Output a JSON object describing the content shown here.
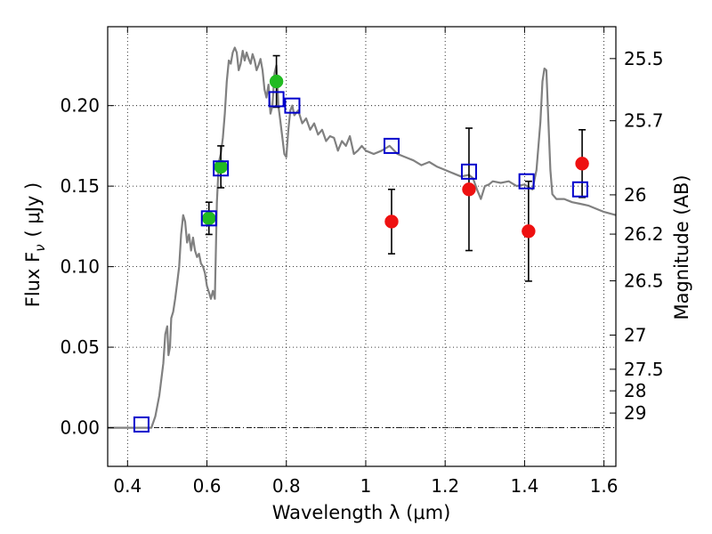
{
  "chart_data": {
    "type": "scatter",
    "xlabel": "Wavelength  λ (μm)",
    "ylabel": "Flux  F",
    "ylabel_sub": "ν",
    "ylabel_unit": "( μJy )",
    "y2label": "Magnitude (AB)",
    "xlim": [
      0.35,
      1.63
    ],
    "ylim": [
      -0.024,
      0.249
    ],
    "grid": true,
    "x_ticks": [
      0.4,
      0.6,
      0.8,
      1.0,
      1.2,
      1.4,
      1.6
    ],
    "x_tick_labels": [
      "0.4",
      "0.6",
      "0.8",
      "1",
      "1.2",
      "1.4",
      "1.6"
    ],
    "y_ticks": [
      0.0,
      0.05,
      0.1,
      0.15,
      0.2
    ],
    "y_tick_labels": [
      "0.00",
      "0.05",
      "0.10",
      "0.15",
      "0.20"
    ],
    "y2_ticks": [
      {
        "label": "25.5",
        "flux": 0.2292
      },
      {
        "label": "25.7",
        "flux": 0.1906
      },
      {
        "label": "26",
        "flux": 0.1446
      },
      {
        "label": "26.2",
        "flux": 0.1202
      },
      {
        "label": "26.5",
        "flux": 0.0912
      },
      {
        "label": "27",
        "flux": 0.0575
      },
      {
        "label": "27.5",
        "flux": 0.0363
      },
      {
        "label": "28",
        "flux": 0.0229
      },
      {
        "label": "29",
        "flux": 0.0091
      }
    ],
    "zero_line": 0.0,
    "model_spectrum": {
      "color": "#808080",
      "points": [
        [
          0.35,
          0.0
        ],
        [
          0.44,
          0.0
        ],
        [
          0.46,
          0.0
        ],
        [
          0.47,
          0.007
        ],
        [
          0.48,
          0.02
        ],
        [
          0.49,
          0.04
        ],
        [
          0.495,
          0.058
        ],
        [
          0.5,
          0.063
        ],
        [
          0.503,
          0.045
        ],
        [
          0.507,
          0.05
        ],
        [
          0.51,
          0.068
        ],
        [
          0.515,
          0.072
        ],
        [
          0.52,
          0.08
        ],
        [
          0.525,
          0.09
        ],
        [
          0.53,
          0.1
        ],
        [
          0.535,
          0.12
        ],
        [
          0.54,
          0.132
        ],
        [
          0.545,
          0.128
        ],
        [
          0.55,
          0.115
        ],
        [
          0.555,
          0.12
        ],
        [
          0.56,
          0.11
        ],
        [
          0.565,
          0.118
        ],
        [
          0.57,
          0.11
        ],
        [
          0.575,
          0.106
        ],
        [
          0.58,
          0.108
        ],
        [
          0.585,
          0.102
        ],
        [
          0.59,
          0.1
        ],
        [
          0.595,
          0.096
        ],
        [
          0.6,
          0.088
        ],
        [
          0.605,
          0.084
        ],
        [
          0.61,
          0.08
        ],
        [
          0.615,
          0.085
        ],
        [
          0.62,
          0.08
        ],
        [
          0.625,
          0.14
        ],
        [
          0.63,
          0.165
        ],
        [
          0.635,
          0.17
        ],
        [
          0.64,
          0.18
        ],
        [
          0.645,
          0.195
        ],
        [
          0.65,
          0.215
        ],
        [
          0.655,
          0.228
        ],
        [
          0.66,
          0.226
        ],
        [
          0.665,
          0.233
        ],
        [
          0.67,
          0.236
        ],
        [
          0.675,
          0.233
        ],
        [
          0.68,
          0.222
        ],
        [
          0.685,
          0.226
        ],
        [
          0.69,
          0.234
        ],
        [
          0.695,
          0.228
        ],
        [
          0.7,
          0.233
        ],
        [
          0.705,
          0.229
        ],
        [
          0.71,
          0.226
        ],
        [
          0.715,
          0.232
        ],
        [
          0.72,
          0.228
        ],
        [
          0.725,
          0.222
        ],
        [
          0.73,
          0.225
        ],
        [
          0.735,
          0.229
        ],
        [
          0.74,
          0.222
        ],
        [
          0.745,
          0.21
        ],
        [
          0.75,
          0.205
        ],
        [
          0.755,
          0.213
        ],
        [
          0.76,
          0.195
        ],
        [
          0.765,
          0.2
        ],
        [
          0.77,
          0.22
        ],
        [
          0.775,
          0.225
        ],
        [
          0.78,
          0.2
        ],
        [
          0.785,
          0.19
        ],
        [
          0.79,
          0.18
        ],
        [
          0.795,
          0.17
        ],
        [
          0.8,
          0.168
        ],
        [
          0.805,
          0.185
        ],
        [
          0.81,
          0.197
        ],
        [
          0.815,
          0.2
        ],
        [
          0.82,
          0.194
        ],
        [
          0.83,
          0.197
        ],
        [
          0.84,
          0.189
        ],
        [
          0.85,
          0.192
        ],
        [
          0.86,
          0.185
        ],
        [
          0.87,
          0.189
        ],
        [
          0.88,
          0.182
        ],
        [
          0.89,
          0.185
        ],
        [
          0.9,
          0.178
        ],
        [
          0.91,
          0.181
        ],
        [
          0.92,
          0.18
        ],
        [
          0.93,
          0.172
        ],
        [
          0.94,
          0.178
        ],
        [
          0.95,
          0.175
        ],
        [
          0.96,
          0.181
        ],
        [
          0.97,
          0.17
        ],
        [
          0.98,
          0.172
        ],
        [
          0.99,
          0.175
        ],
        [
          1.0,
          0.172
        ],
        [
          1.02,
          0.17
        ],
        [
          1.04,
          0.172
        ],
        [
          1.06,
          0.175
        ],
        [
          1.08,
          0.17
        ],
        [
          1.1,
          0.168
        ],
        [
          1.12,
          0.166
        ],
        [
          1.14,
          0.163
        ],
        [
          1.16,
          0.165
        ],
        [
          1.18,
          0.162
        ],
        [
          1.2,
          0.16
        ],
        [
          1.22,
          0.158
        ],
        [
          1.24,
          0.156
        ],
        [
          1.26,
          0.157
        ],
        [
          1.27,
          0.155
        ],
        [
          1.28,
          0.148
        ],
        [
          1.29,
          0.142
        ],
        [
          1.3,
          0.15
        ],
        [
          1.31,
          0.151
        ],
        [
          1.32,
          0.153
        ],
        [
          1.34,
          0.152
        ],
        [
          1.36,
          0.153
        ],
        [
          1.38,
          0.15
        ],
        [
          1.4,
          0.151
        ],
        [
          1.42,
          0.148
        ],
        [
          1.43,
          0.16
        ],
        [
          1.44,
          0.19
        ],
        [
          1.445,
          0.215
        ],
        [
          1.45,
          0.223
        ],
        [
          1.455,
          0.222
        ],
        [
          1.46,
          0.19
        ],
        [
          1.465,
          0.16
        ],
        [
          1.47,
          0.145
        ],
        [
          1.48,
          0.142
        ],
        [
          1.5,
          0.142
        ],
        [
          1.52,
          0.14
        ],
        [
          1.54,
          0.139
        ],
        [
          1.56,
          0.138
        ],
        [
          1.58,
          0.136
        ],
        [
          1.6,
          0.134
        ],
        [
          1.63,
          0.132
        ]
      ]
    },
    "series": [
      {
        "marker": "circle",
        "color": "#22bb22",
        "points": [
          {
            "x": 0.605,
            "y": 0.13,
            "yerr": 0.01
          },
          {
            "x": 0.635,
            "y": 0.162,
            "yerr": 0.013
          },
          {
            "x": 0.775,
            "y": 0.215,
            "yerr": 0.016
          }
        ]
      },
      {
        "marker": "circle",
        "color": "#ee1111",
        "points": [
          {
            "x": 1.065,
            "y": 0.128,
            "yerr": 0.02
          },
          {
            "x": 1.26,
            "y": 0.148,
            "yerr": 0.038
          },
          {
            "x": 1.41,
            "y": 0.122,
            "yerr": 0.031
          },
          {
            "x": 1.545,
            "y": 0.164,
            "yerr": 0.021
          }
        ]
      },
      {
        "marker": "square",
        "color": "#0000cc",
        "points": [
          {
            "x": 0.435,
            "y": 0.002
          },
          {
            "x": 0.605,
            "y": 0.13
          },
          {
            "x": 0.635,
            "y": 0.161
          },
          {
            "x": 0.775,
            "y": 0.204
          },
          {
            "x": 0.815,
            "y": 0.2
          },
          {
            "x": 1.065,
            "y": 0.175
          },
          {
            "x": 1.26,
            "y": 0.159
          },
          {
            "x": 1.405,
            "y": 0.153
          },
          {
            "x": 1.54,
            "y": 0.148
          }
        ]
      }
    ]
  }
}
